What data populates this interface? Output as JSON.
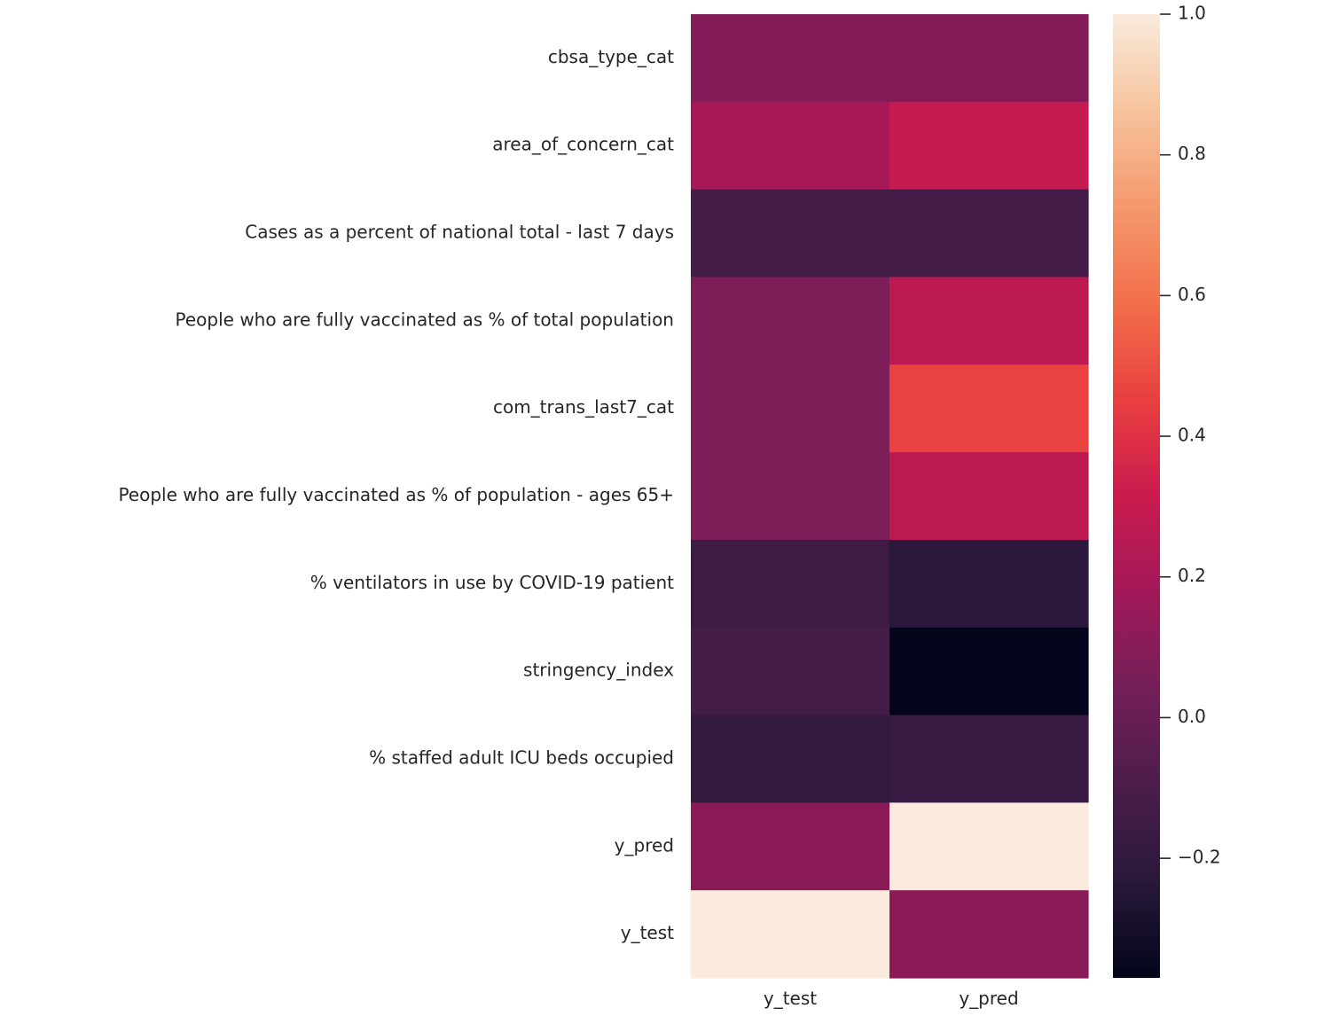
{
  "chart_data": {
    "type": "heatmap",
    "title": "",
    "xlabel": "",
    "ylabel": "",
    "x_labels": [
      "y_test",
      "y_pred"
    ],
    "y_labels": [
      "cbsa_type_cat",
      "area_of_concern_cat",
      "Cases as a percent of national total - last 7 days",
      "People who are fully vaccinated as % of total population",
      "com_trans_last7_cat",
      "People who are fully vaccinated as % of population - ages 65+",
      "% ventilators in use by COVID-19 patient",
      "stringency_index",
      "% staffed adult ICU beds occupied",
      "y_pred",
      "y_test"
    ],
    "values": [
      [
        0.09,
        0.09
      ],
      [
        0.2,
        0.3
      ],
      [
        -0.13,
        -0.13
      ],
      [
        0.07,
        0.27
      ],
      [
        0.07,
        0.46
      ],
      [
        0.07,
        0.27
      ],
      [
        -0.15,
        -0.22
      ],
      [
        -0.13,
        -0.37
      ],
      [
        -0.19,
        -0.17
      ],
      [
        0.11,
        1.0
      ],
      [
        1.0,
        0.11
      ]
    ],
    "vmin": -0.37,
    "vmax": 1.0,
    "colormap": "rocket",
    "colorbar": {
      "ticks": [
        1.0,
        0.8,
        0.6,
        0.4,
        0.2,
        0.0,
        -0.2
      ],
      "tick_labels": [
        "1.0",
        "0.8",
        "0.6",
        "0.4",
        "0.2",
        "0.0",
        "−0.2"
      ]
    }
  }
}
